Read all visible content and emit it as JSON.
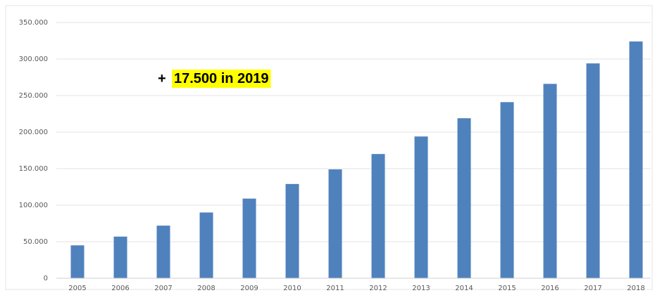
{
  "chart_data": {
    "type": "bar",
    "categories": [
      "2005",
      "2006",
      "2007",
      "2008",
      "2009",
      "2010",
      "2011",
      "2012",
      "2013",
      "2014",
      "2015",
      "2016",
      "2017",
      "2018"
    ],
    "values": [
      45000,
      57000,
      72000,
      90000,
      109000,
      129000,
      149000,
      170000,
      194000,
      219000,
      241000,
      266000,
      294000,
      324000
    ],
    "ylim": [
      0,
      350000
    ],
    "yticks": [
      0,
      50000,
      100000,
      150000,
      200000,
      250000,
      300000,
      350000
    ],
    "ytick_labels": [
      "0",
      "50.000",
      "100.000",
      "150.000",
      "200.000",
      "250.000",
      "300.000",
      "350.000"
    ],
    "grid": true,
    "bar_color": "#4f81bd",
    "annotation": {
      "prefix": "+",
      "highlight": "17.500 in 2019",
      "highlight_color": "#ffff00"
    }
  }
}
